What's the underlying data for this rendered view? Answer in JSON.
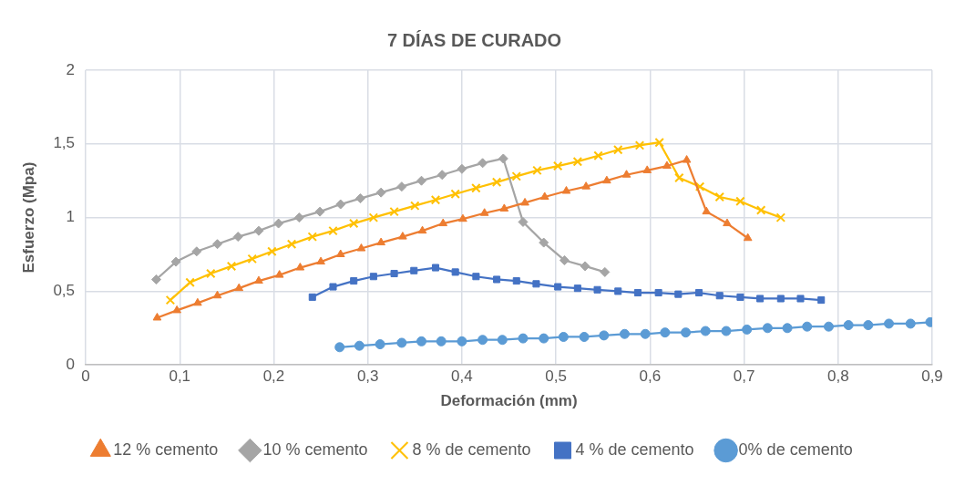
{
  "chart_data": {
    "type": "line",
    "title": "7 DÍAS DE CURADO",
    "xlabel": "Deformación (mm)",
    "ylabel": "Esfuerzo (Mpa)",
    "xlim": [
      0,
      0.9
    ],
    "xticks": [
      {
        "value": 0,
        "label": "0"
      },
      {
        "value": 0.1,
        "label": "0,1"
      },
      {
        "value": 0.2,
        "label": "0,2"
      },
      {
        "value": 0.3,
        "label": "0,3"
      },
      {
        "value": 0.4,
        "label": "0,4"
      },
      {
        "value": 0.5,
        "label": "0,5"
      },
      {
        "value": 0.6,
        "label": "0,6"
      },
      {
        "value": 0.7,
        "label": "0,7"
      },
      {
        "value": 0.8,
        "label": "0,8"
      },
      {
        "value": 0.9,
        "label": "0,9"
      }
    ],
    "ylim": [
      0,
      2
    ],
    "yticks": [
      0,
      {
        "value": 0.5,
        "label": "0,5"
      },
      1,
      {
        "value": 1.5,
        "label": "1,5"
      },
      2
    ],
    "grid": true,
    "legend": "bottom",
    "line_style": "solid",
    "series": [
      {
        "name": "12 % cemento",
        "color": "#ed7d31",
        "marker": "triangle",
        "x": [
          0.076,
          0.097,
          0.119,
          0.14,
          0.163,
          0.184,
          0.206,
          0.228,
          0.25,
          0.271,
          0.293,
          0.314,
          0.337,
          0.358,
          0.38,
          0.401,
          0.424,
          0.445,
          0.467,
          0.488,
          0.511,
          0.532,
          0.554,
          0.575,
          0.597,
          0.618,
          0.639,
          0.66,
          0.682,
          0.704
        ],
        "values": [
          0.32,
          0.37,
          0.42,
          0.47,
          0.52,
          0.57,
          0.61,
          0.66,
          0.7,
          0.75,
          0.79,
          0.83,
          0.87,
          0.91,
          0.96,
          0.99,
          1.03,
          1.06,
          1.1,
          1.14,
          1.18,
          1.21,
          1.25,
          1.29,
          1.32,
          1.35,
          1.39,
          1.04,
          0.96,
          0.86
        ]
      },
      {
        "name": "10 % cemento",
        "color": "#a5a5a5",
        "marker": "diamond",
        "x": [
          0.075,
          0.096,
          0.118,
          0.14,
          0.162,
          0.184,
          0.205,
          0.227,
          0.249,
          0.271,
          0.292,
          0.314,
          0.336,
          0.357,
          0.379,
          0.4,
          0.422,
          0.444,
          0.465,
          0.487,
          0.509,
          0.531,
          0.552
        ],
        "values": [
          0.58,
          0.7,
          0.77,
          0.82,
          0.87,
          0.91,
          0.96,
          1.0,
          1.04,
          1.09,
          1.13,
          1.17,
          1.21,
          1.25,
          1.29,
          1.33,
          1.37,
          1.4,
          0.97,
          0.83,
          0.71,
          0.67,
          0.63
        ]
      },
      {
        "name": "8 % de cemento",
        "color": "#ffc000",
        "marker": "cross",
        "x": [
          0.09,
          0.111,
          0.133,
          0.155,
          0.177,
          0.198,
          0.219,
          0.241,
          0.263,
          0.285,
          0.306,
          0.328,
          0.35,
          0.372,
          0.393,
          0.415,
          0.437,
          0.458,
          0.48,
          0.502,
          0.523,
          0.545,
          0.566,
          0.589,
          0.61,
          0.631,
          0.653,
          0.674,
          0.696,
          0.718,
          0.739
        ],
        "values": [
          0.44,
          0.56,
          0.62,
          0.67,
          0.72,
          0.77,
          0.82,
          0.87,
          0.91,
          0.96,
          1.0,
          1.04,
          1.08,
          1.12,
          1.16,
          1.2,
          1.24,
          1.28,
          1.32,
          1.35,
          1.38,
          1.42,
          1.46,
          1.49,
          1.51,
          1.27,
          1.21,
          1.14,
          1.11,
          1.05,
          1.0
        ]
      },
      {
        "name": "4 % de cemento",
        "color": "#4472c4",
        "marker": "square",
        "x": [
          0.241,
          0.263,
          0.285,
          0.306,
          0.328,
          0.349,
          0.372,
          0.393,
          0.415,
          0.437,
          0.458,
          0.479,
          0.502,
          0.523,
          0.544,
          0.566,
          0.587,
          0.609,
          0.63,
          0.652,
          0.674,
          0.696,
          0.717,
          0.739,
          0.76,
          0.782
        ],
        "values": [
          0.46,
          0.53,
          0.57,
          0.6,
          0.62,
          0.64,
          0.66,
          0.63,
          0.6,
          0.58,
          0.57,
          0.55,
          0.53,
          0.52,
          0.51,
          0.5,
          0.49,
          0.49,
          0.48,
          0.49,
          0.47,
          0.46,
          0.45,
          0.45,
          0.45,
          0.44
        ]
      },
      {
        "name": "0% de cemento",
        "color": "#5b9bd5",
        "marker": "circle",
        "x": [
          0.27,
          0.291,
          0.313,
          0.336,
          0.357,
          0.378,
          0.4,
          0.422,
          0.443,
          0.465,
          0.487,
          0.508,
          0.53,
          0.551,
          0.573,
          0.595,
          0.616,
          0.638,
          0.659,
          0.681,
          0.703,
          0.725,
          0.746,
          0.767,
          0.79,
          0.811,
          0.832,
          0.854,
          0.877,
          0.898
        ],
        "values": [
          0.12,
          0.13,
          0.14,
          0.15,
          0.16,
          0.16,
          0.16,
          0.17,
          0.17,
          0.18,
          0.18,
          0.19,
          0.19,
          0.2,
          0.21,
          0.21,
          0.22,
          0.22,
          0.23,
          0.23,
          0.24,
          0.25,
          0.25,
          0.26,
          0.26,
          0.27,
          0.27,
          0.28,
          0.28,
          0.29
        ]
      }
    ]
  }
}
